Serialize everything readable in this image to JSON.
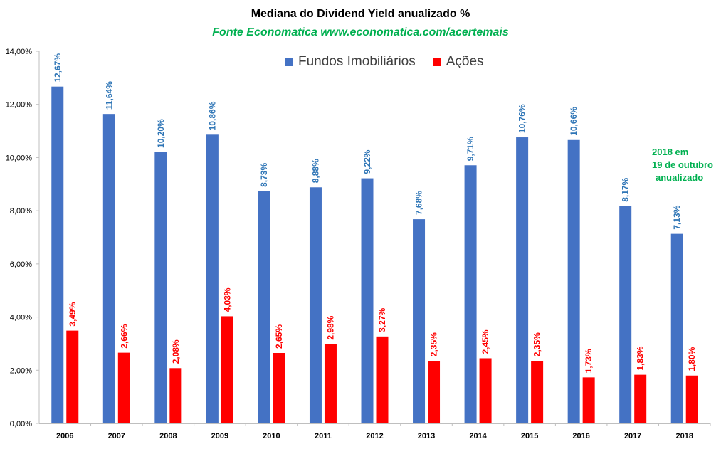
{
  "chart_data": {
    "type": "bar",
    "title": "Mediana do Dividend Yield anualizado  %",
    "subtitle": "Fonte Economatica www.economatica.com/acertemais",
    "categories": [
      "2006",
      "2007",
      "2008",
      "2009",
      "2010",
      "2011",
      "2012",
      "2013",
      "2014",
      "2015",
      "2016",
      "2017",
      "2018"
    ],
    "series": [
      {
        "name": "Fundos Imobiliários",
        "color": "#4472C4",
        "label_color": "#2E75B6",
        "values": [
          12.67,
          11.64,
          10.2,
          10.86,
          8.73,
          8.88,
          9.22,
          7.68,
          9.71,
          10.76,
          10.66,
          8.17,
          7.13
        ],
        "labels": [
          "12,67%",
          "11,64%",
          "10,20%",
          "10,86%",
          "8,73%",
          "8,88%",
          "9,22%",
          "7,68%",
          "9,71%",
          "10,76%",
          "10,66%",
          "8,17%",
          "7,13%"
        ]
      },
      {
        "name": "Ações",
        "color": "#FF0000",
        "label_color": "#FF0000",
        "values": [
          3.49,
          2.66,
          2.08,
          4.03,
          2.65,
          2.98,
          3.27,
          2.35,
          2.45,
          2.35,
          1.73,
          1.83,
          1.8
        ],
        "labels": [
          "3,49%",
          "2,66%",
          "2,08%",
          "4,03%",
          "2,65%",
          "2,98%",
          "3,27%",
          "2,35%",
          "2,45%",
          "2,35%",
          "1,73%",
          "1,83%",
          "1,80%"
        ]
      }
    ],
    "ylim": [
      0,
      14
    ],
    "yticks": [
      0,
      2,
      4,
      6,
      8,
      10,
      12,
      14
    ],
    "ytick_labels": [
      "0,00%",
      "2,00%",
      "4,00%",
      "6,00%",
      "8,00%",
      "10,00%",
      "12,00%",
      "14,00%"
    ],
    "xlabel": "",
    "ylabel": "",
    "grid": false,
    "legend_position": "top-center",
    "annotation": [
      "2018  em",
      "19 de outubro",
      "anualizado"
    ]
  }
}
